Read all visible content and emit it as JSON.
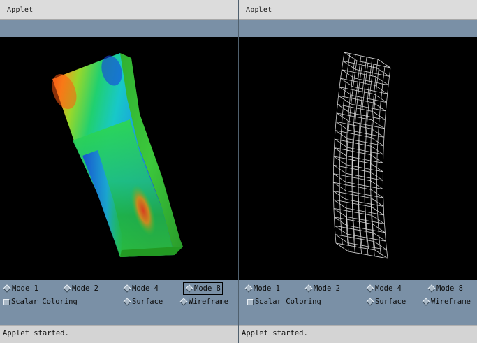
{
  "left_applet": {
    "title": "Applet",
    "modes": [
      "Mode 1",
      "Mode 2",
      "Mode 4",
      "Mode 8"
    ],
    "scalar_coloring": "Scalar Coloring",
    "render_options": [
      "Surface",
      "Wireframe"
    ],
    "status": "Applet started."
  },
  "right_applet": {
    "title": "Applet",
    "modes": [
      "Mode 1",
      "Mode 2",
      "Mode 4",
      "Mode 8"
    ],
    "scalar_coloring": "Scalar Coloring",
    "render_options": [
      "Surface",
      "Wireframe"
    ],
    "status": "Applet started."
  },
  "colors": {
    "panel_bg": "#7a90a6",
    "canvas_bg": "#000000",
    "titlebar_bg": "#dcdcdc",
    "statusbar_bg": "#d4d4d4",
    "wire_color": "#e6e6e6"
  },
  "icons": {
    "radio": "diamond-radio-icon",
    "checkbox": "square-checkbox-icon"
  }
}
